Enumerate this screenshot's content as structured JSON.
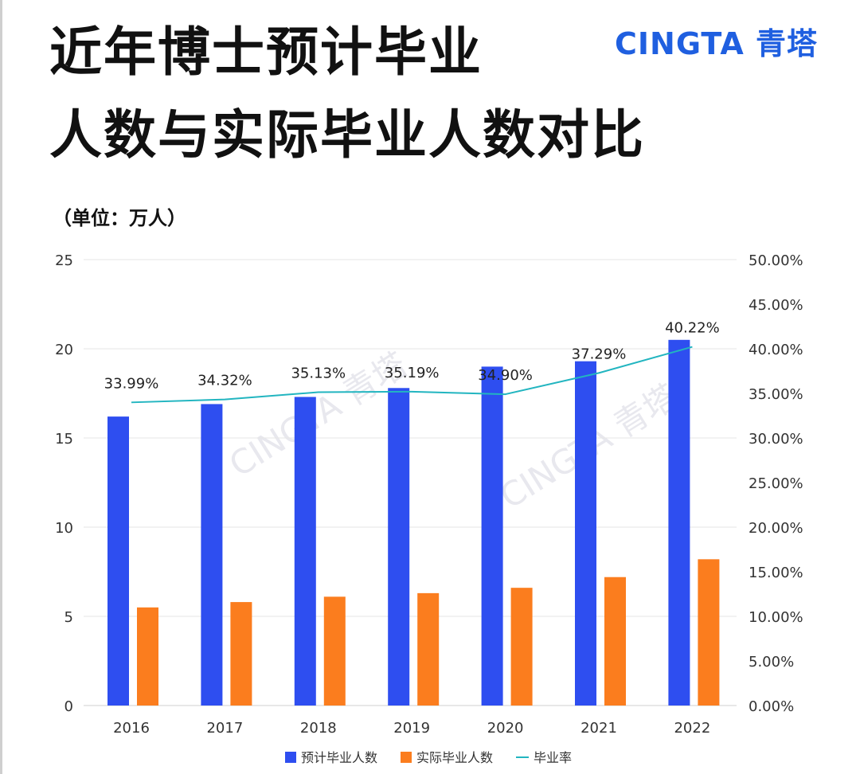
{
  "title": {
    "line1": "近年博士预计毕业",
    "line2": "人数与实际毕业人数对比"
  },
  "brand": {
    "text": "CINGTA 青塔",
    "color": "#1f5fe0"
  },
  "watermark": {
    "text": "CINGTA 青塔"
  },
  "unit_label": "（单位：万人）",
  "chart_data": {
    "type": "bar",
    "title": "近年博士预计毕业人数与实际毕业人数对比",
    "categories": [
      "2016",
      "2017",
      "2018",
      "2019",
      "2020",
      "2021",
      "2022"
    ],
    "series": [
      {
        "name": "预计毕业人数",
        "type": "bar",
        "axis": "left",
        "color": "#2e4ef0",
        "values": [
          16.2,
          16.9,
          17.3,
          17.8,
          19.0,
          19.3,
          20.5
        ]
      },
      {
        "name": "实际毕业人数",
        "type": "bar",
        "axis": "left",
        "color": "#fb7d1e",
        "values": [
          5.5,
          5.8,
          6.1,
          6.3,
          6.6,
          7.2,
          8.2
        ]
      },
      {
        "name": "毕业率",
        "type": "line",
        "axis": "right",
        "color": "#22b5c0",
        "values": [
          33.99,
          34.32,
          35.13,
          35.19,
          34.9,
          37.29,
          40.22
        ],
        "labels": [
          "33.99%",
          "34.32%",
          "35.13%",
          "35.19%",
          "34.90%",
          "37.29%",
          "40.22%"
        ]
      }
    ],
    "y_left": {
      "min": 0,
      "max": 25,
      "ticks": [
        "0",
        "5",
        "10",
        "15",
        "20",
        "25"
      ]
    },
    "y_right": {
      "min": 0,
      "max": 50,
      "ticks": [
        "0.00%",
        "5.00%",
        "10.00%",
        "15.00%",
        "20.00%",
        "25.00%",
        "30.00%",
        "35.00%",
        "40.00%",
        "45.00%",
        "50.00%"
      ]
    },
    "grid": true,
    "legend_position": "bottom"
  }
}
